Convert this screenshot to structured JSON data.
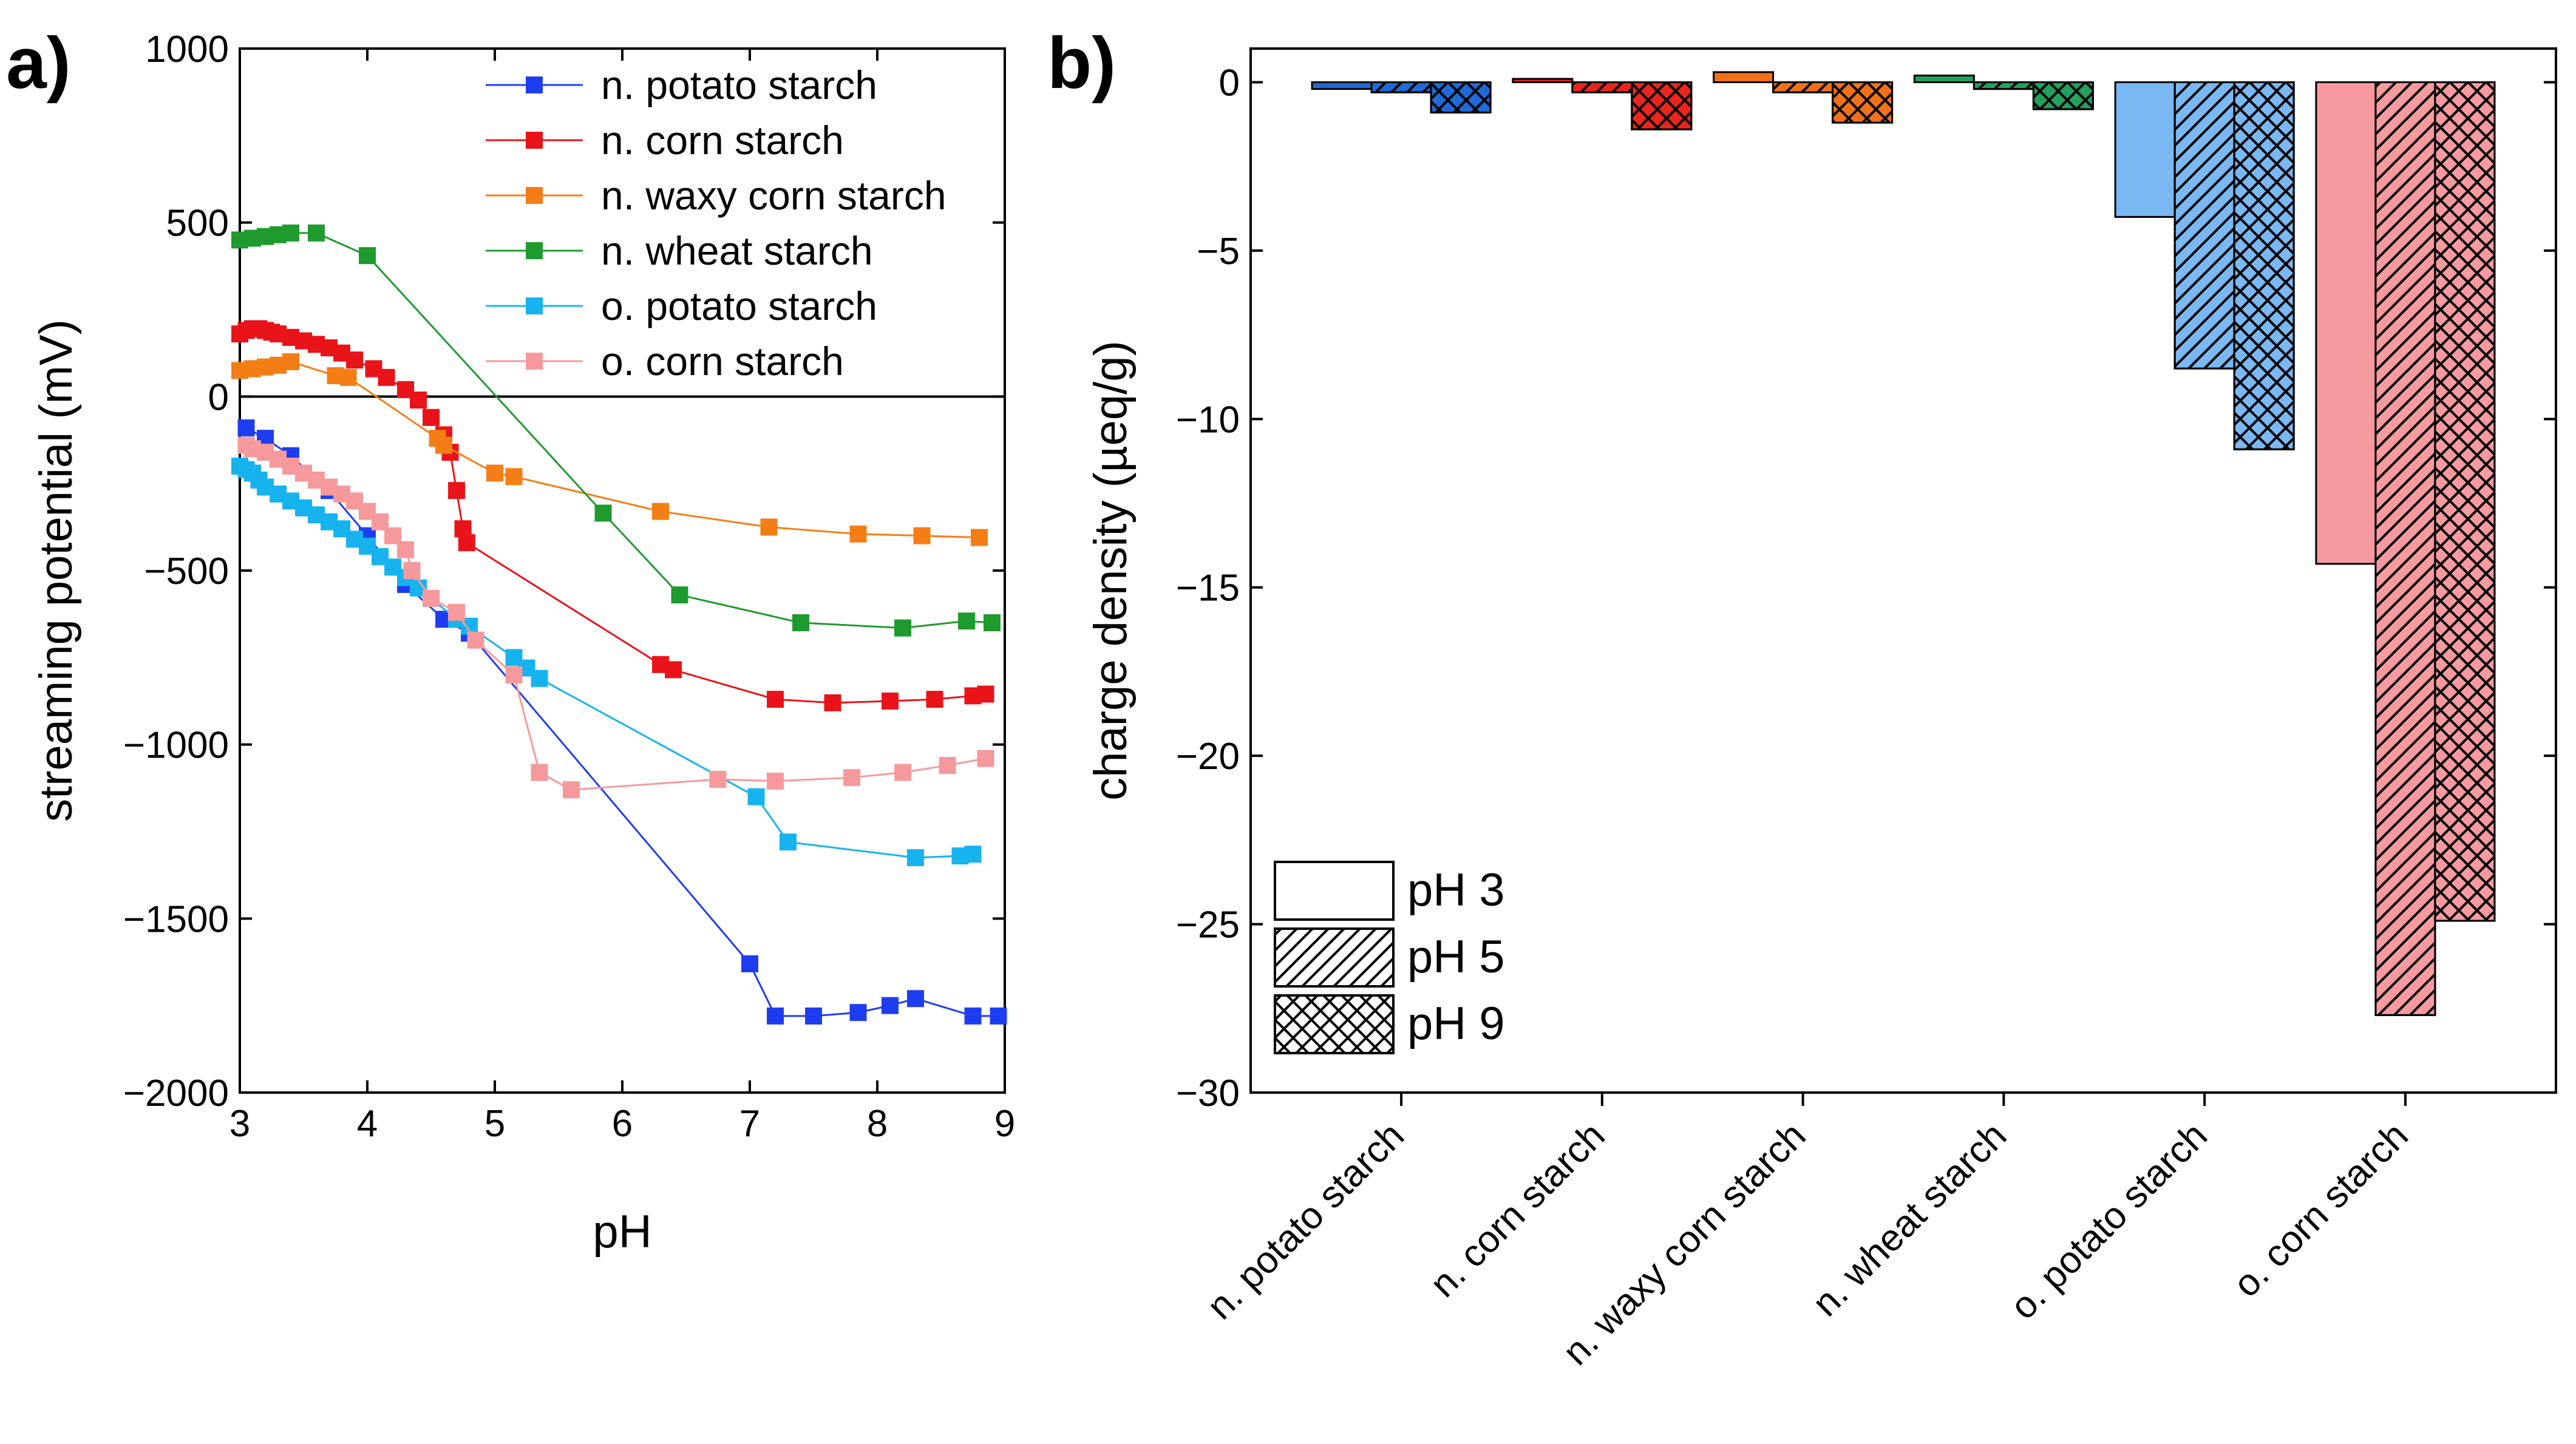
{
  "panel_a": {
    "letter": "a)",
    "chart_data": {
      "type": "line",
      "xlabel": "pH",
      "ylabel": "streaming potential (mV)",
      "xlim": [
        3,
        9
      ],
      "ylim": [
        -2000,
        1000
      ],
      "xticks": [
        "3",
        "4",
        "5",
        "6",
        "7",
        "8",
        "9"
      ],
      "yticks": [
        "1000",
        "500",
        "0",
        "−500",
        "−1000",
        "−1500",
        "−2000"
      ],
      "zero_line": true,
      "legend_position": "top-right",
      "series": [
        {
          "name": "n. potato starch",
          "color": "#1f3df0",
          "x": [
            3.05,
            3.2,
            3.4,
            3.7,
            4.0,
            4.3,
            4.6,
            4.8,
            7.0,
            7.2,
            7.5,
            7.85,
            8.1,
            8.3,
            8.75,
            8.95
          ],
          "y": [
            -90,
            -120,
            -170,
            -270,
            -400,
            -540,
            -640,
            -680,
            -1630,
            -1780,
            -1780,
            -1770,
            -1750,
            -1730,
            -1780,
            -1780
          ]
        },
        {
          "name": "n. corn starch",
          "color": "#e8141a",
          "x": [
            3.0,
            3.05,
            3.1,
            3.15,
            3.2,
            3.25,
            3.3,
            3.4,
            3.5,
            3.6,
            3.7,
            3.8,
            3.9,
            4.05,
            4.15,
            4.3,
            4.4,
            4.5,
            4.6,
            4.65,
            4.7,
            4.75,
            4.78,
            6.3,
            6.4,
            7.2,
            7.65,
            8.1,
            8.45,
            8.75,
            8.85
          ],
          "y": [
            180,
            190,
            195,
            195,
            190,
            185,
            180,
            170,
            160,
            150,
            140,
            125,
            105,
            80,
            55,
            20,
            -10,
            -60,
            -110,
            -160,
            -270,
            -380,
            -420,
            -770,
            -785,
            -870,
            -880,
            -875,
            -870,
            -860,
            -855
          ]
        },
        {
          "name": "n. waxy corn starch",
          "color": "#f47e16",
          "x": [
            3.0,
            3.1,
            3.2,
            3.3,
            3.4,
            3.75,
            3.85,
            4.55,
            4.6,
            5.0,
            5.15,
            6.3,
            7.15,
            7.85,
            8.35,
            8.8
          ],
          "y": [
            75,
            80,
            85,
            90,
            100,
            60,
            55,
            -120,
            -140,
            -220,
            -230,
            -330,
            -375,
            -395,
            -400,
            -405
          ]
        },
        {
          "name": "n. wheat starch",
          "color": "#1f9a2f",
          "x": [
            3.0,
            3.1,
            3.2,
            3.3,
            3.4,
            3.6,
            4.0,
            5.85,
            6.45,
            7.4,
            8.2,
            8.7,
            8.9
          ],
          "y": [
            450,
            455,
            460,
            465,
            470,
            470,
            405,
            -335,
            -570,
            -650,
            -665,
            -645,
            -650
          ]
        },
        {
          "name": "o. potato starch",
          "color": "#17b3ef",
          "x": [
            3.0,
            3.05,
            3.1,
            3.15,
            3.2,
            3.3,
            3.4,
            3.5,
            3.6,
            3.7,
            3.8,
            3.9,
            4.0,
            4.1,
            4.2,
            4.3,
            4.4,
            4.5,
            4.7,
            4.8,
            5.15,
            5.25,
            5.35,
            7.05,
            7.3,
            8.3,
            8.65,
            8.75
          ],
          "y": [
            -200,
            -210,
            -220,
            -240,
            -260,
            -280,
            -300,
            -320,
            -340,
            -360,
            -380,
            -410,
            -430,
            -460,
            -490,
            -520,
            -550,
            -580,
            -640,
            -660,
            -750,
            -780,
            -810,
            -1150,
            -1280,
            -1325,
            -1320,
            -1315
          ]
        },
        {
          "name": "o. corn starch",
          "color": "#f6999c",
          "x": [
            3.05,
            3.1,
            3.2,
            3.3,
            3.4,
            3.5,
            3.6,
            3.7,
            3.8,
            3.9,
            4.0,
            4.1,
            4.2,
            4.3,
            4.35,
            4.5,
            4.7,
            4.85,
            5.15,
            5.35,
            5.6,
            6.75,
            7.2,
            7.8,
            8.2,
            8.55,
            8.85
          ],
          "y": [
            -140,
            -150,
            -160,
            -180,
            -200,
            -220,
            -240,
            -260,
            -280,
            -300,
            -330,
            -360,
            -400,
            -440,
            -500,
            -580,
            -620,
            -700,
            -800,
            -1080,
            -1130,
            -1100,
            -1105,
            -1095,
            -1080,
            -1060,
            -1040
          ]
        }
      ]
    }
  },
  "panel_b": {
    "letter": "b)",
    "chart_data": {
      "type": "bar",
      "ylabel": "charge density (µeq/g)",
      "ylim": [
        -30,
        1
      ],
      "yticks": [
        "0",
        "−5",
        "−10",
        "−15",
        "−20",
        "−25",
        "−30"
      ],
      "categories": [
        "n. potato starch",
        "n. corn starch",
        "n. waxy corn starch",
        "n. wheat starch",
        "o. potato starch",
        "o. corn starch"
      ],
      "category_colors": [
        "#2069d6",
        "#e8261e",
        "#f27118",
        "#22a05c",
        "#79b8f2",
        "#f79aa0"
      ],
      "legend_position": "bottom-left",
      "series": [
        {
          "name": "pH 3",
          "pattern": "solid",
          "values": [
            -0.2,
            0.1,
            0.3,
            0.2,
            -4.0,
            -14.3
          ]
        },
        {
          "name": "pH 5",
          "pattern": "hatched",
          "values": [
            -0.3,
            -0.3,
            -0.3,
            -0.2,
            -8.5,
            -27.7
          ]
        },
        {
          "name": "pH 9",
          "pattern": "crosshatched",
          "values": [
            -0.9,
            -1.4,
            -1.2,
            -0.8,
            -10.9,
            -24.9
          ]
        }
      ]
    }
  }
}
